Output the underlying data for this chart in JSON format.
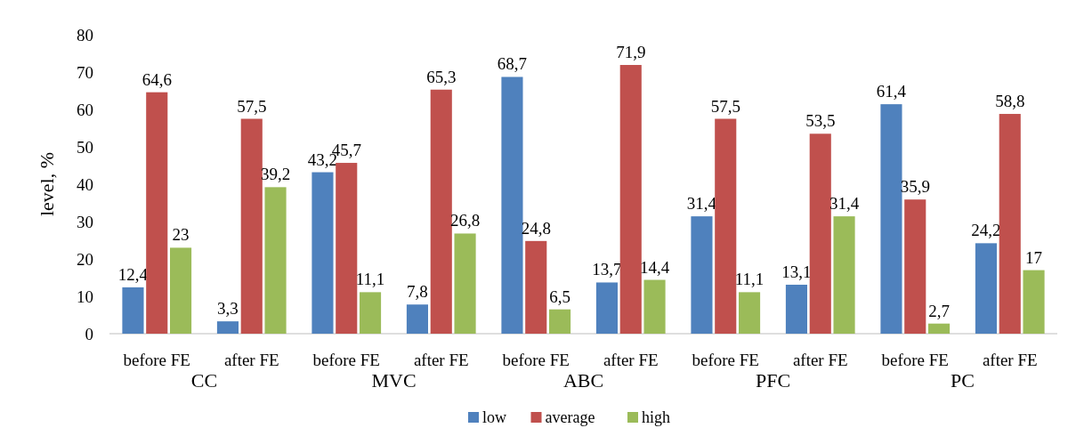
{
  "chart_data": {
    "type": "bar",
    "ylabel": "level, %",
    "categories": [
      "before FE",
      "after FE",
      "before FE",
      "after FE",
      "before FE",
      "after FE",
      "before FE",
      "after FE",
      "before FE",
      "after FE"
    ],
    "annotations": [
      "CC",
      "MVC",
      "ABC",
      "PFC",
      "PC"
    ],
    "series": [
      {
        "name": "low",
        "color": "#4f81bd",
        "values": [
          12.4,
          3.3,
          43.2,
          7.8,
          68.7,
          13.7,
          31.4,
          13.1,
          61.4,
          24.2
        ],
        "value_labels": [
          "12,4",
          "3,3",
          "43,2",
          "7,8",
          "68,7",
          "13,7",
          "31,4",
          "13,1",
          "61,4",
          "24,2"
        ]
      },
      {
        "name": "average",
        "color": "#c0504d",
        "values": [
          64.6,
          57.5,
          45.7,
          65.3,
          24.8,
          71.9,
          57.5,
          53.5,
          35.9,
          58.8
        ],
        "value_labels": [
          "64,6",
          "57,5",
          "45,7",
          "65,3",
          "24,8",
          "71,9",
          "57,5",
          "53,5",
          "35,9",
          "58,8"
        ]
      },
      {
        "name": "high",
        "color": "#9bbb59",
        "values": [
          23,
          39.2,
          11.1,
          26.8,
          6.5,
          14.4,
          11.1,
          31.4,
          2.7,
          17
        ],
        "value_labels": [
          "23",
          "39,2",
          "11,1",
          "26,8",
          "6,5",
          "14,4",
          "11,1",
          "31,4",
          "2,7",
          "17"
        ]
      }
    ],
    "ylim": [
      0,
      80
    ],
    "yticks": [
      0,
      10,
      20,
      30,
      40,
      50,
      60,
      70,
      80
    ],
    "legend": "bottom"
  }
}
